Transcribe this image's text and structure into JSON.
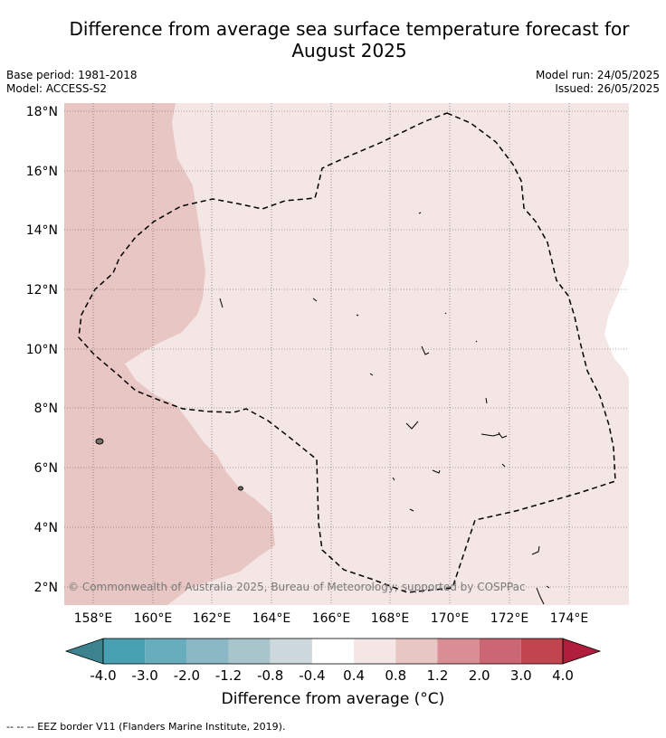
{
  "header": {
    "title_line1": "Difference from average sea surface temperature forecast for",
    "title_line2": "August 2025",
    "base_period": "Base period: 1981-2018",
    "model": "Model: ACCESS-S2",
    "model_run": "Model run: 24/05/2025",
    "issued": "Issued: 26/05/2025"
  },
  "map": {
    "lat_labels": [
      "18°N",
      "16°N",
      "14°N",
      "12°N",
      "10°N",
      "8°N",
      "6°N",
      "4°N",
      "2°N"
    ],
    "lon_labels": [
      "158°E",
      "160°E",
      "162°E",
      "164°E",
      "166°E",
      "168°E",
      "170°E",
      "172°E",
      "174°E"
    ],
    "copyright": "© Commonwealth of Australia 2025, Bureau of Meteorology; supported by COSPPac",
    "anomaly_colors": {
      "0.8 to 1.2": "#e8c6c3",
      "0.4 to 0.8": "#f4e6e5",
      "outside": "#ffffff"
    }
  },
  "colorbar": {
    "labels": [
      "-4.0",
      "-3.0",
      "-2.0",
      "-1.2",
      "-0.8",
      "-0.4",
      "0.4",
      "0.8",
      "1.2",
      "2.0",
      "3.0",
      "4.0"
    ],
    "colors": [
      "#47a1b3",
      "#67adbd",
      "#8ab8c4",
      "#a7c5ca",
      "#cdd9dc",
      "#ffffff",
      "#f4e6e5",
      "#e8c6c3",
      "#d98e96",
      "#cb6673",
      "#c0454f"
    ],
    "extend_low_color": "#3d828f",
    "extend_high_color": "#b01d3d",
    "title": "Difference from average (°C)"
  },
  "footnote": "--  --  -- EEZ border V11 (Flanders Marine Institute, 2019)."
}
